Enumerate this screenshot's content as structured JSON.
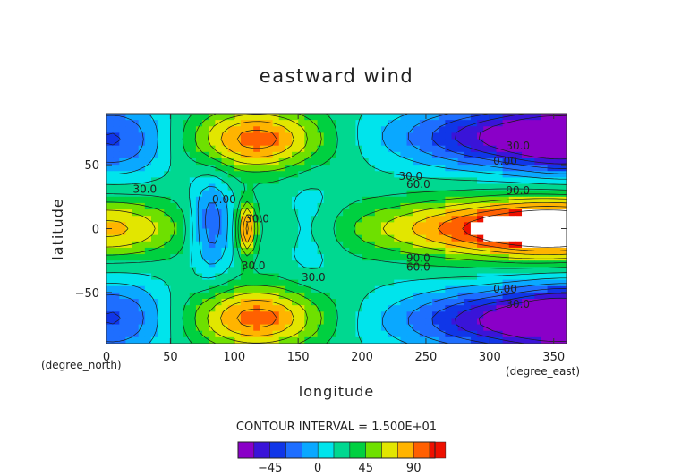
{
  "chart_data": {
    "type": "heatmap",
    "title": "eastward wind",
    "xlabel": "longitude",
    "ylabel": "latitude",
    "x_unit": "(degree_east)",
    "y_unit": "(degree_north)",
    "xlim": [
      0,
      360
    ],
    "ylim": [
      -90,
      90
    ],
    "x_ticks": [
      "0",
      "50",
      "100",
      "150",
      "200",
      "250",
      "300",
      "350"
    ],
    "y_ticks": [
      "50",
      "0",
      "−50"
    ],
    "contour_interval": "CONTOUR INTERVAL = 1.500E+01",
    "contour_labels": [
      {
        "text": "30.0",
        "x": 322,
        "y": 62
      },
      {
        "text": "0.00",
        "x": 312,
        "y": 50
      },
      {
        "text": "30.0",
        "x": 238,
        "y": 38
      },
      {
        "text": "60.0",
        "x": 244,
        "y": 32
      },
      {
        "text": "90.0",
        "x": 322,
        "y": 27
      },
      {
        "text": "30.0",
        "x": 30,
        "y": 28
      },
      {
        "text": "0.00",
        "x": 92,
        "y": 20
      },
      {
        "text": "30.0",
        "x": 118,
        "y": 5
      },
      {
        "text": "30.0",
        "x": 115,
        "y": -32
      },
      {
        "text": "30.0",
        "x": 162,
        "y": -41
      },
      {
        "text": "90.0",
        "x": 244,
        "y": -26
      },
      {
        "text": "60.0",
        "x": 244,
        "y": -33
      },
      {
        "text": "0.00",
        "x": 312,
        "y": -50
      },
      {
        "text": "30.0",
        "x": 322,
        "y": -62
      }
    ],
    "colorbar": {
      "min": -75,
      "max": 110,
      "step": 15,
      "ticks": [
        "−45",
        "0",
        "45",
        "90"
      ],
      "tick_values": [
        -45,
        0,
        45,
        90
      ]
    }
  }
}
